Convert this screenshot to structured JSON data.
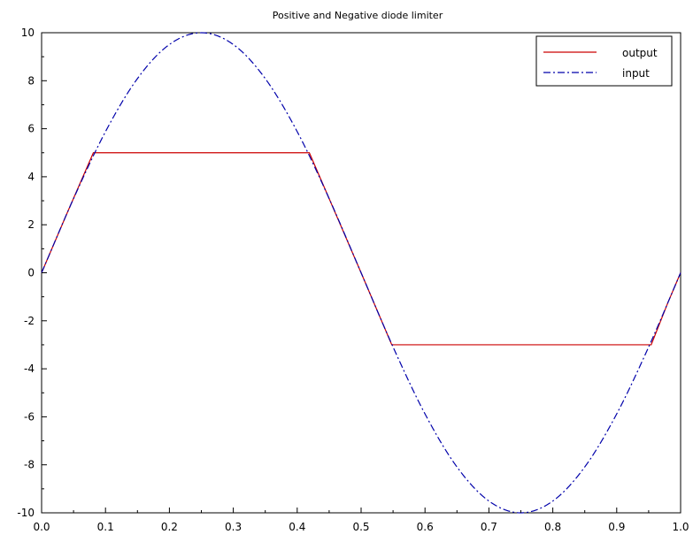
{
  "chart_data": {
    "type": "line",
    "title": "Positive and Negative diode limiter",
    "xlabel": "",
    "ylabel": "",
    "xlim": [
      0,
      1
    ],
    "ylim": [
      -10,
      10
    ],
    "grid": false,
    "legend_position": "top-right",
    "x_ticks": [
      0,
      0.1,
      0.2,
      0.3,
      0.4,
      0.5,
      0.6,
      0.7,
      0.8,
      0.9,
      1.0
    ],
    "x_tick_labels": [
      "0.0",
      "0.1",
      "0.2",
      "0.3",
      "0.4",
      "0.5",
      "0.6",
      "0.7",
      "0.8",
      "0.9",
      "1.0"
    ],
    "y_ticks": [
      -10,
      -8,
      -6,
      -4,
      -2,
      0,
      2,
      4,
      6,
      8,
      10
    ],
    "y_tick_labels": [
      "-10",
      "-8",
      "-6",
      "-4",
      "-2",
      "0",
      "2",
      "4",
      "6",
      "8",
      "10"
    ],
    "series": [
      {
        "name": "output",
        "color": "#cc0000",
        "style": "solid",
        "x": [
          0,
          0.04,
          0.081,
          0.15,
          0.2,
          0.25,
          0.3,
          0.35,
          0.419,
          0.45,
          0.5,
          0.548,
          0.6,
          0.7,
          0.8,
          0.9,
          0.954,
          0.98,
          1.0
        ],
        "y": [
          0,
          2.49,
          5.0,
          5.0,
          5.0,
          5.0,
          5.0,
          5.0,
          5.0,
          3.09,
          0,
          -3.0,
          -3.0,
          -3.0,
          -3.0,
          -3.0,
          -3.0,
          -1.25,
          0
        ]
      },
      {
        "name": "input",
        "color": "#0000aa",
        "style": "dashdot",
        "x": [
          0,
          0.05,
          0.1,
          0.15,
          0.2,
          0.25,
          0.3,
          0.35,
          0.4,
          0.45,
          0.5,
          0.55,
          0.6,
          0.65,
          0.7,
          0.75,
          0.8,
          0.85,
          0.9,
          0.95,
          1.0
        ],
        "y": [
          0,
          3.09,
          5.88,
          8.09,
          9.51,
          10.0,
          9.51,
          8.09,
          5.88,
          3.09,
          0,
          -3.09,
          -5.88,
          -8.09,
          -9.51,
          -10.0,
          -9.51,
          -8.09,
          -5.88,
          -3.09,
          0
        ]
      }
    ]
  }
}
